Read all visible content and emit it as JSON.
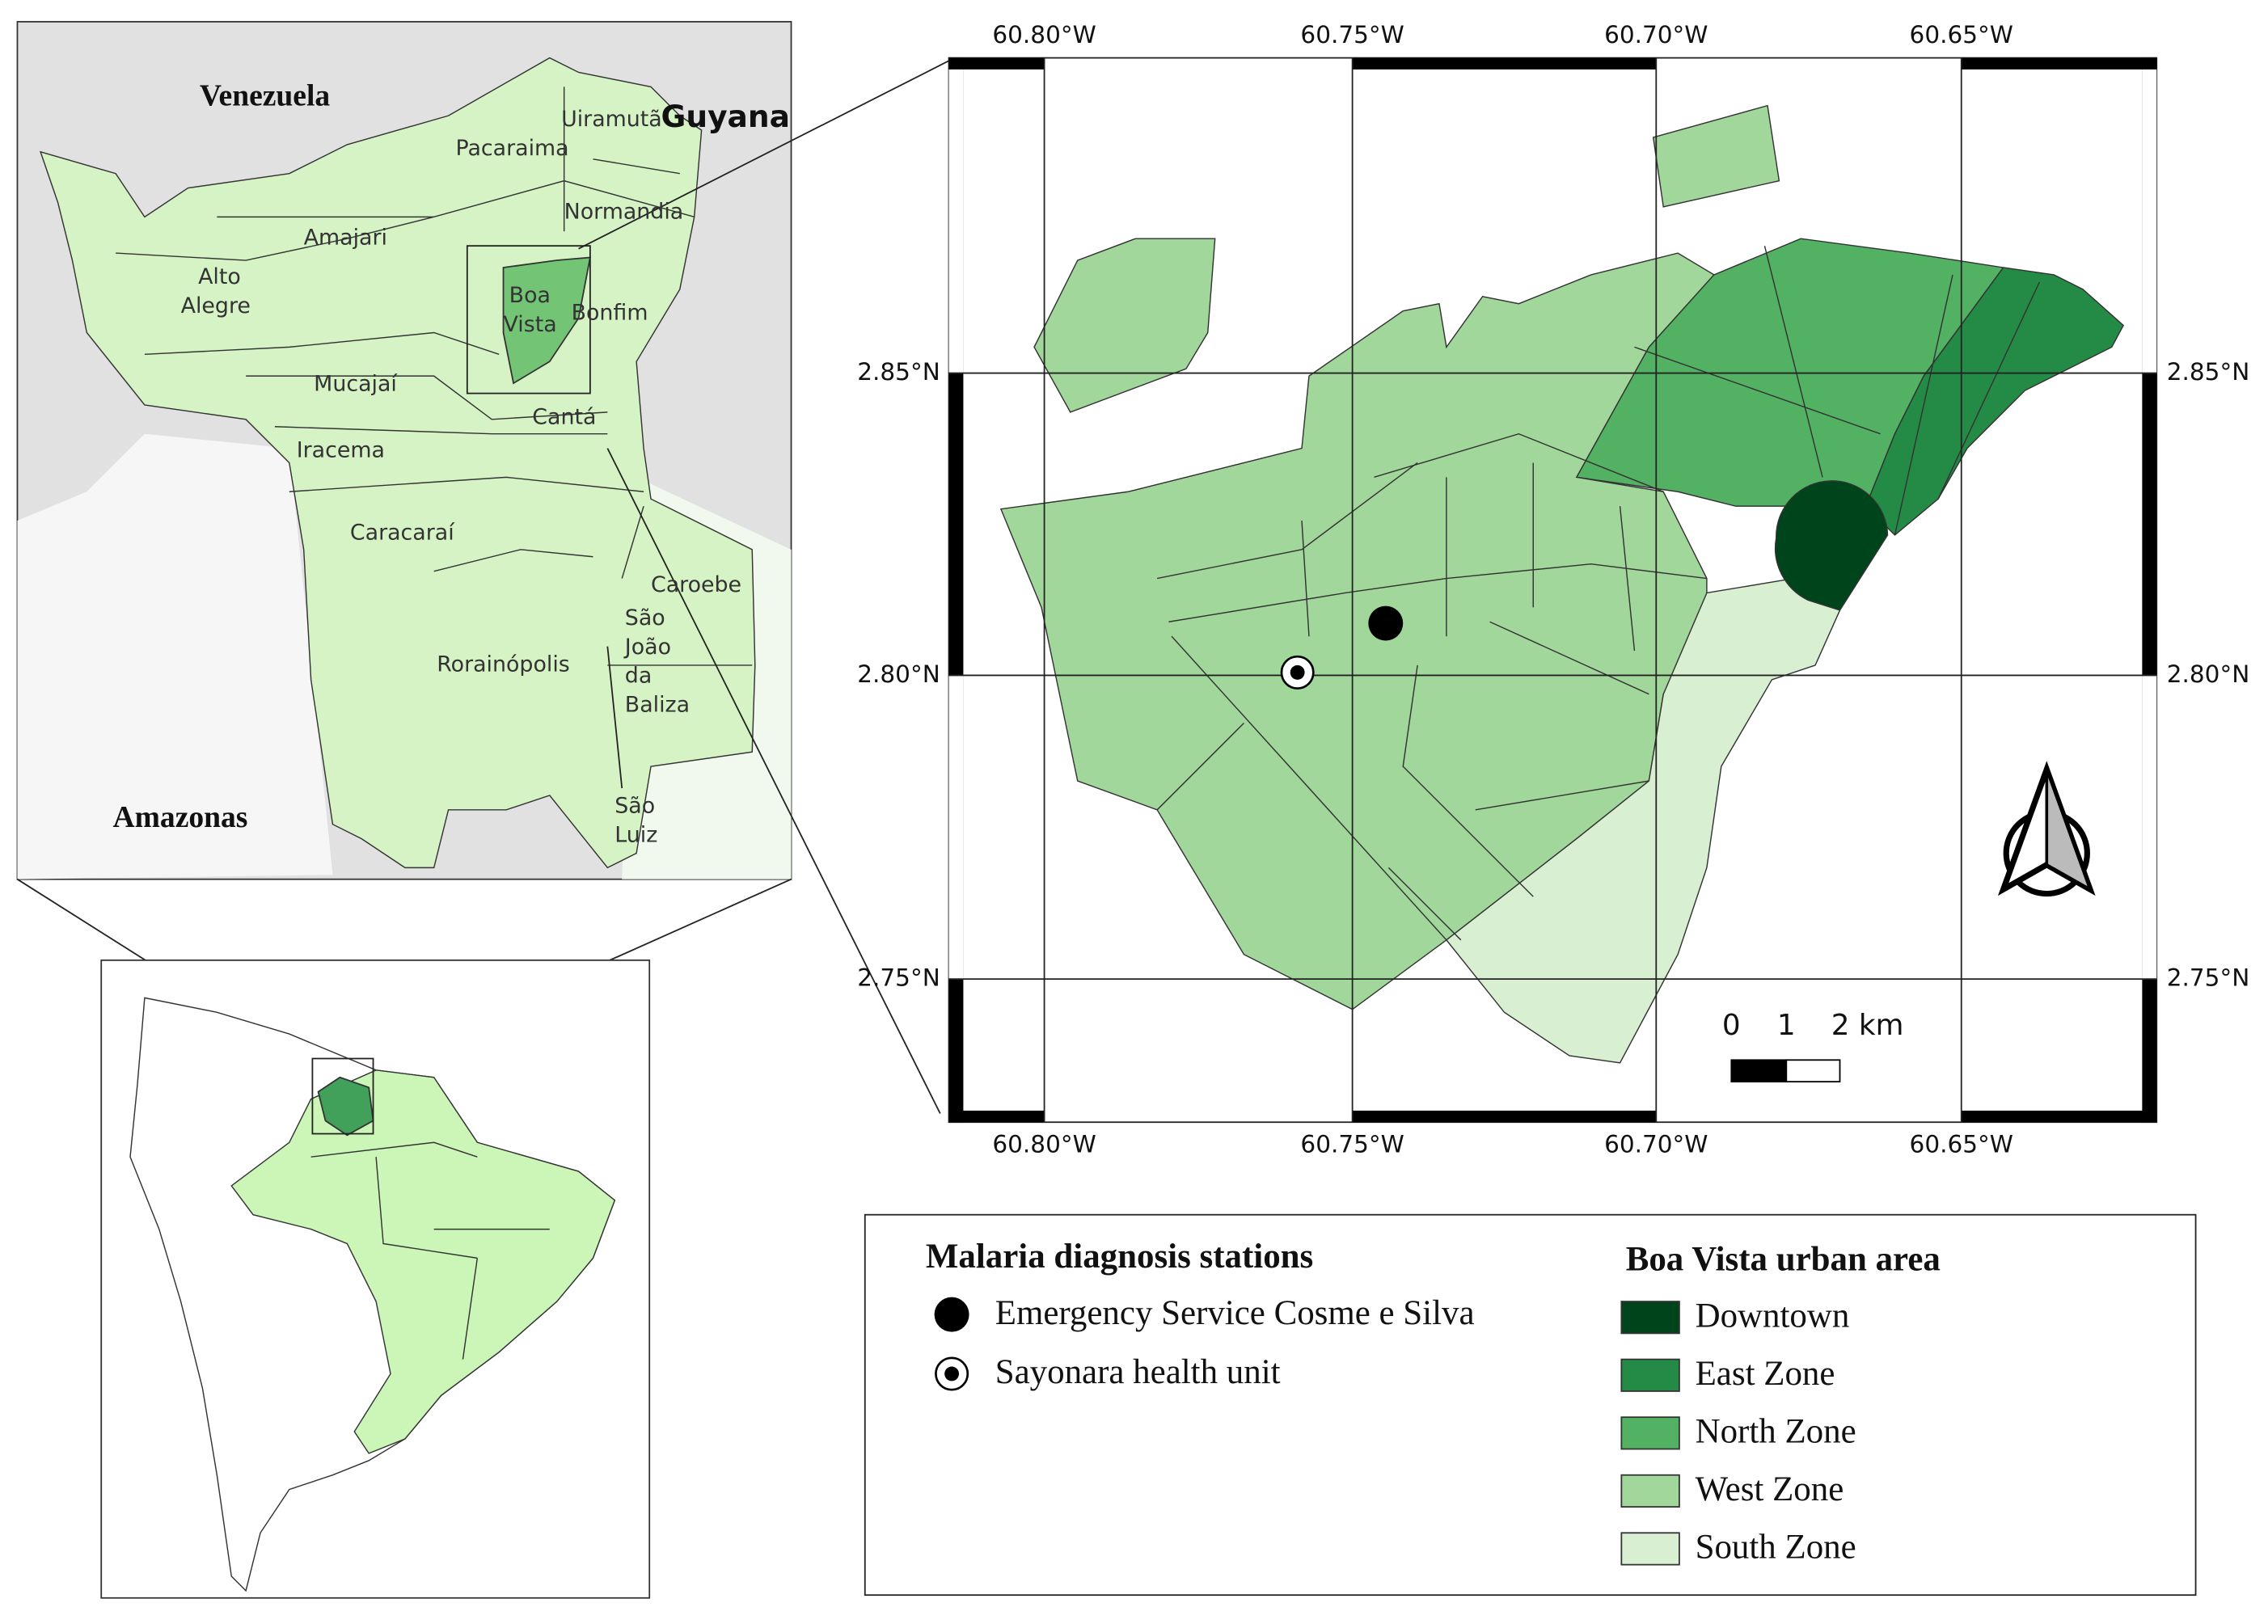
{
  "inset_roraima": {
    "countries": [
      "Venezuela",
      "Guyana",
      "Amazonas"
    ],
    "municipalities": [
      [
        "Uiramutã"
      ],
      [
        "Pacaraima"
      ],
      [
        "Normandia"
      ],
      [
        "Amajari"
      ],
      [
        "Alto",
        "Alegre"
      ],
      [
        "Boa",
        "Vista"
      ],
      [
        "Bonfim"
      ],
      [
        "Mucajaí"
      ],
      [
        "Cantá"
      ],
      [
        "Iracema"
      ],
      [
        "Caracaraí"
      ],
      [
        "Caroebe"
      ],
      [
        "São",
        "João",
        "da",
        "Baliza"
      ],
      [
        "Rorainópolis"
      ],
      [
        "São",
        "Luiz"
      ]
    ]
  },
  "main_map": {
    "longitude_labels": [
      "60.80°W",
      "60.75°W",
      "60.70°W",
      "60.65°W"
    ],
    "latitude_labels": [
      "2.85°N",
      "2.80°N",
      "2.75°N"
    ],
    "scale_bar": [
      "0",
      "1",
      "2 km"
    ]
  },
  "legend": {
    "stations": {
      "title": "Malaria diagnosis stations",
      "items": [
        "Emergency Service Cosme e Silva",
        "Sayonara health unit"
      ]
    },
    "zones": {
      "title": "Boa Vista urban area",
      "items": [
        {
          "label": "Downtown",
          "color": "#00441b"
        },
        {
          "label": "East Zone",
          "color": "#238b45"
        },
        {
          "label": "North Zone",
          "color": "#52b163"
        },
        {
          "label": "West Zone",
          "color": "#a1d79a"
        },
        {
          "label": "South Zone",
          "color": "#d8efd2"
        }
      ]
    }
  }
}
